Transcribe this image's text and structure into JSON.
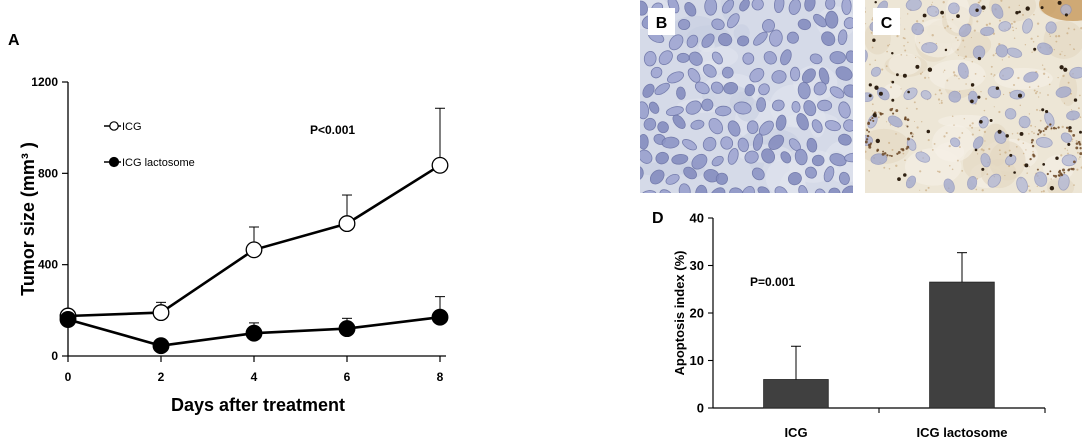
{
  "chart_data": [
    {
      "panel": "A",
      "type": "line",
      "x": [
        0,
        2,
        4,
        6,
        8
      ],
      "xticks": [
        0,
        2,
        4,
        6,
        8
      ],
      "yticks": [
        0,
        400,
        800,
        1200
      ],
      "xlim": [
        0,
        8
      ],
      "ylim": [
        0,
        1200
      ],
      "xlabel": "Days after treatment",
      "ylabel": "Tumor size (mm³ )",
      "annotation": "P<0.001",
      "grid": false,
      "legend": "top-left",
      "series": [
        {
          "name": "ICG",
          "values": [
            175,
            190,
            465,
            580,
            835
          ],
          "error_upper": [
            0,
            45,
            100,
            125,
            250
          ],
          "line_color": "#000000",
          "marker_fill": "#ffffff"
        },
        {
          "name": "ICG lactosome",
          "values": [
            160,
            45,
            100,
            120,
            170
          ],
          "error_upper": [
            0,
            0,
            45,
            45,
            90
          ],
          "line_color": "#000000",
          "marker_fill": "#000000"
        }
      ]
    },
    {
      "panel": "D",
      "type": "bar",
      "categories": [
        "ICG",
        "ICG lactosome"
      ],
      "values": [
        6,
        26.5
      ],
      "error_upper": [
        7,
        6.2
      ],
      "yticks": [
        0,
        10,
        20,
        30,
        40
      ],
      "ylim": [
        0,
        40
      ],
      "ylabel": "Apoptosis index (%)",
      "annotation": "P=0.001",
      "grid": false,
      "bar_color": "#404040"
    }
  ],
  "micrographs": [
    {
      "panel": "B"
    },
    {
      "panel": "C"
    }
  ]
}
